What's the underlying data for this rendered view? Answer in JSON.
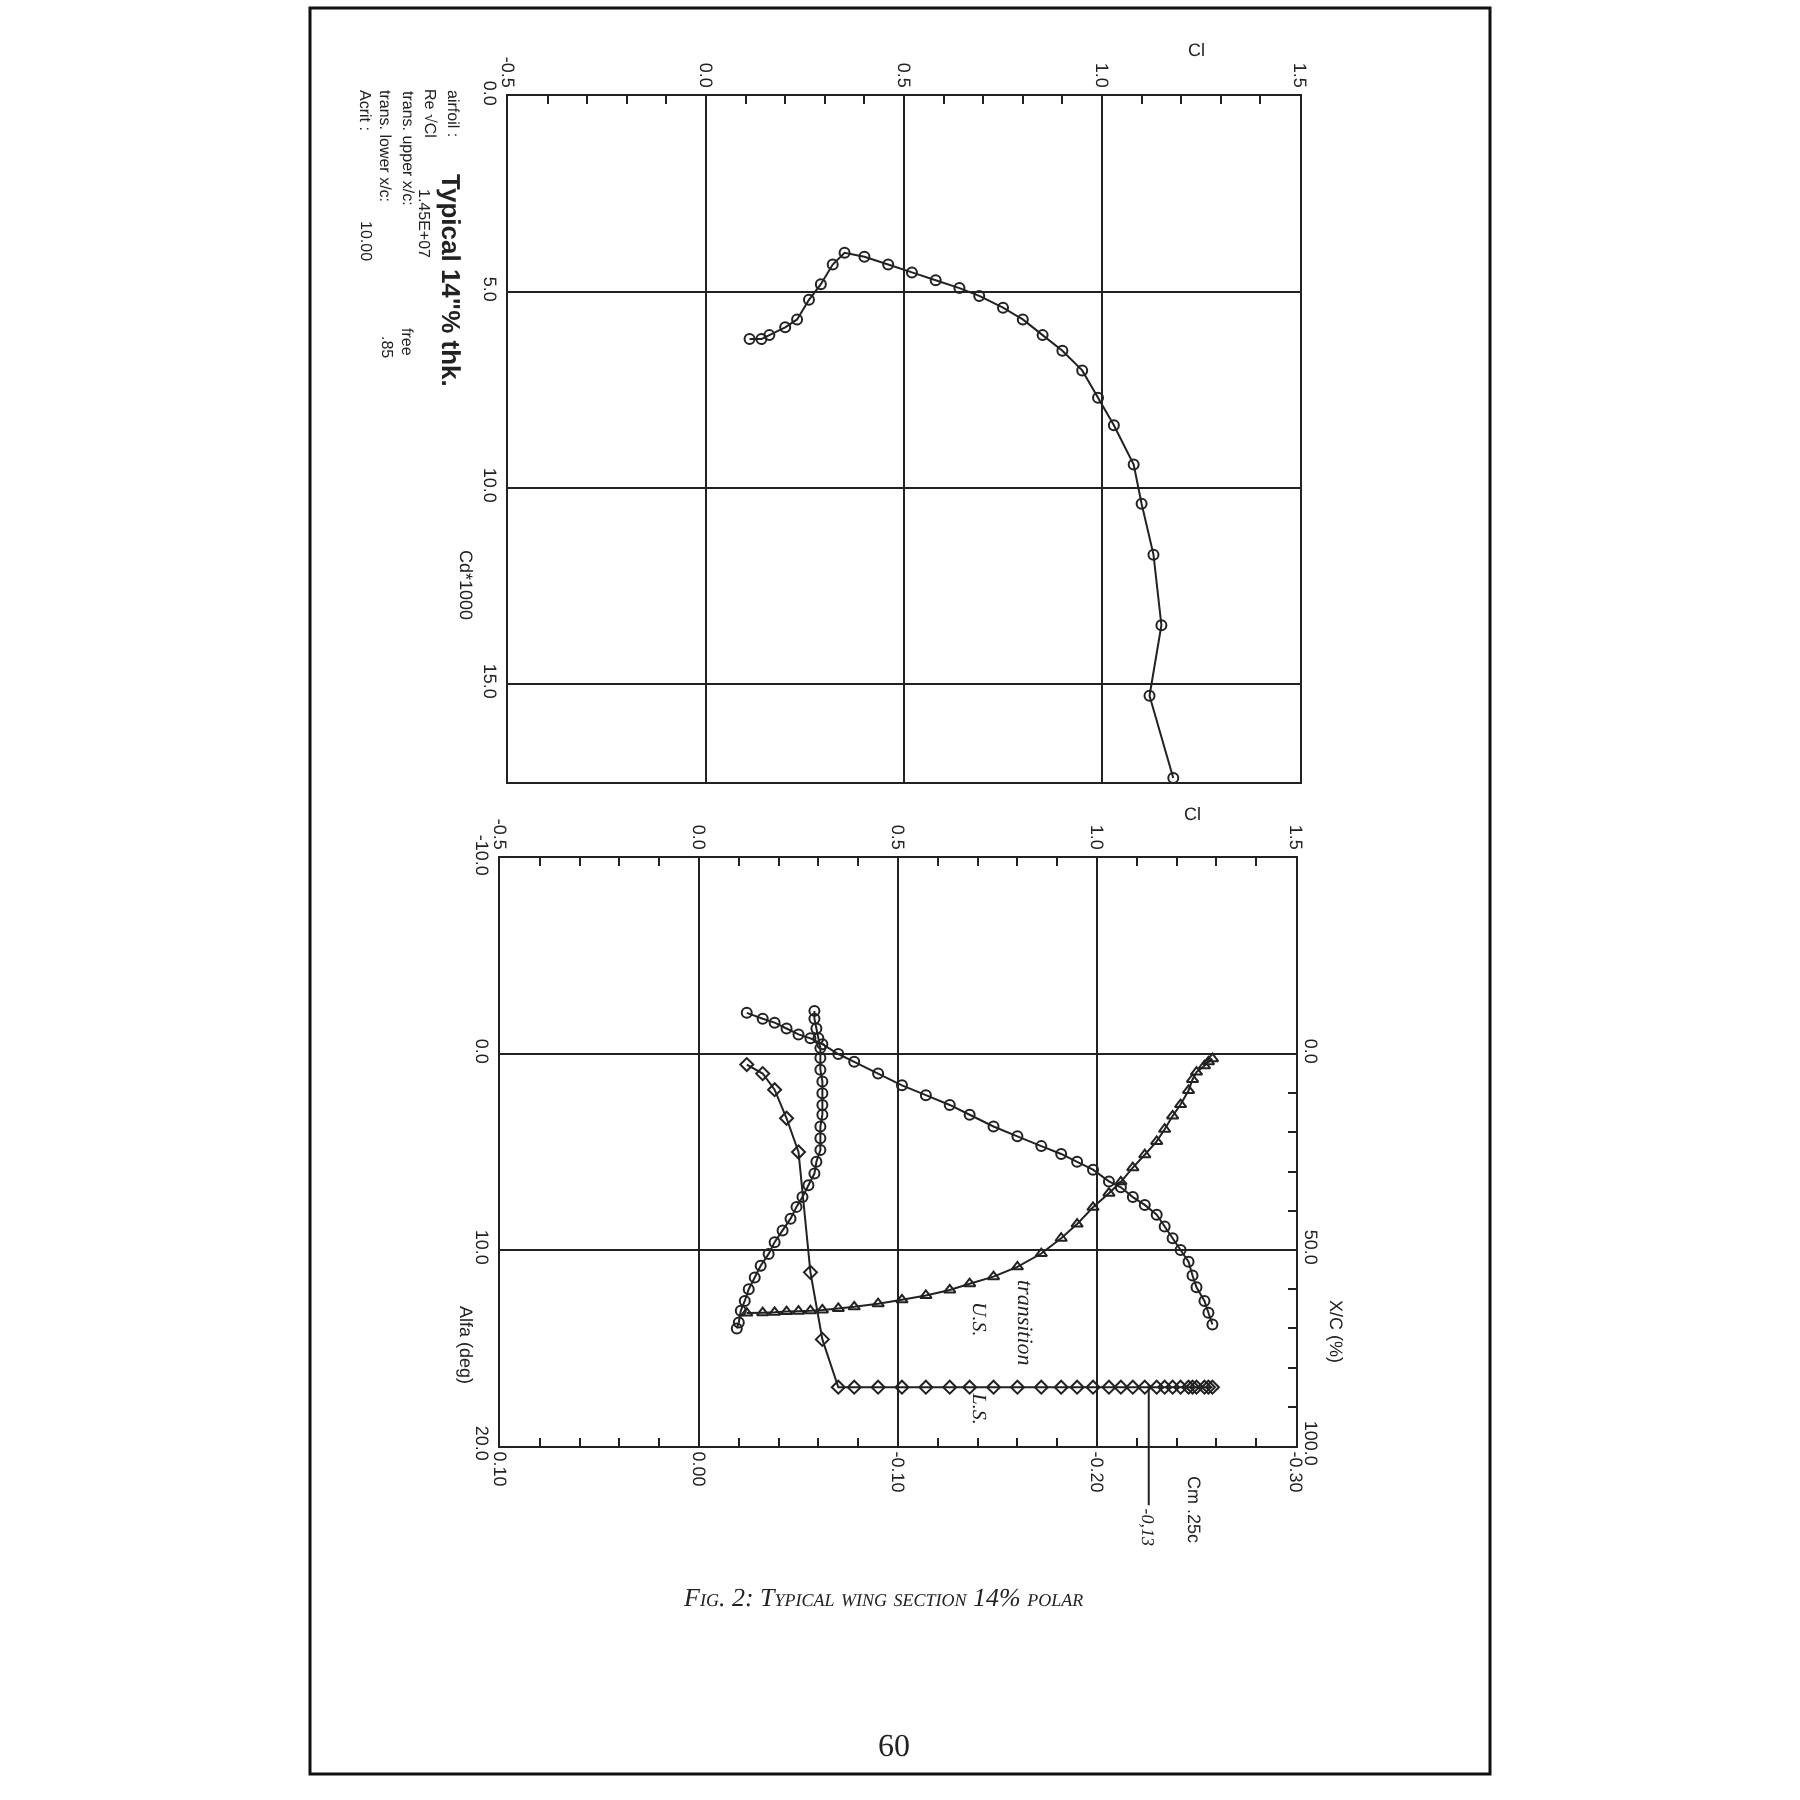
{
  "chart_data": [
    {
      "type": "line",
      "xlabel": "Cl",
      "ylabel": "Cd*1000",
      "xlim": [
        -0.5,
        1.5
      ],
      "xticks": [
        -0.5,
        {
          "value": -0.4,
          "label": null
        },
        {
          "value": -0.3,
          "label": null
        },
        {
          "value": -0.2,
          "label": null
        },
        {
          "value": -0.1,
          "label": null
        },
        {
          "value": 0,
          "label": "0.0"
        },
        {
          "value": 0.1,
          "label": null
        },
        {
          "value": 0.2,
          "label": null
        },
        {
          "value": 0.3,
          "label": null
        },
        {
          "value": 0.4,
          "label": null
        },
        0.5,
        {
          "value": 0.6,
          "label": null
        },
        {
          "value": 0.7,
          "label": null
        },
        {
          "value": 0.8,
          "label": null
        },
        {
          "value": 0.9,
          "label": null
        },
        {
          "value": 1,
          "label": "1.0"
        },
        {
          "value": 1.1,
          "label": null
        },
        {
          "value": 1.2,
          "label": null
        },
        {
          "value": 1.3,
          "label": null
        },
        {
          "value": 1.4,
          "label": null
        },
        1.5
      ],
      "ylim": [
        17.5,
        0
      ],
      "yticks": [
        {
          "value": 0,
          "label": "0.0"
        },
        {
          "value": 5,
          "label": "5.0"
        },
        {
          "value": 10,
          "label": "10.0"
        },
        {
          "value": 15,
          "label": "15.0"
        }
      ],
      "grid": true,
      "legend": false,
      "marker": "circle",
      "line_style": "solid",
      "annotations": [
        "airfoil :",
        "Typical 14\"% thk.",
        "Re √Cl",
        "1.45E+07",
        "trans. upper x/c:",
        "free",
        "trans. lower x/c:",
        ".85",
        "Acrit :",
        "10.00"
      ],
      "series": [
        {
          "color": "#222222",
          "x": [
            0.11,
            0.14,
            0.16,
            0.2,
            0.23,
            0.26,
            0.29,
            0.32,
            0.35,
            0.4,
            0.46,
            0.52,
            0.58,
            0.64,
            0.69,
            0.75,
            0.8,
            0.85,
            0.9,
            0.95,
            0.99,
            1.03,
            1.08,
            1.1,
            1.13,
            1.15,
            1.12,
            1.18
          ],
          "values": [
            6.2,
            6.2,
            6.1,
            5.9,
            5.7,
            5.2,
            4.8,
            4.3,
            4.0,
            4.1,
            4.3,
            4.5,
            4.7,
            4.9,
            5.1,
            5.4,
            5.7,
            6.1,
            6.5,
            7.0,
            7.7,
            8.4,
            9.4,
            10.4,
            11.7,
            13.5,
            15.3,
            17.4
          ]
        }
      ]
    },
    {
      "type": "line",
      "xlabel": "Cl",
      "x2label": "Cm .25c",
      "ylabel": "Alfa (deg)",
      "y2label": "X/C (%)",
      "xlim": [
        -0.5,
        1.5
      ],
      "xticks": [
        -0.5,
        {
          "value": -0.4,
          "label": null
        },
        {
          "value": -0.3,
          "label": null
        },
        {
          "value": -0.2,
          "label": null
        },
        {
          "value": -0.1,
          "label": null
        },
        {
          "value": 0,
          "label": "0.0"
        },
        {
          "value": 0.1,
          "label": null
        },
        {
          "value": 0.2,
          "label": null
        },
        {
          "value": 0.3,
          "label": null
        },
        {
          "value": 0.4,
          "label": null
        },
        0.5,
        {
          "value": 0.6,
          "label": null
        },
        {
          "value": 0.7,
          "label": null
        },
        {
          "value": 0.8,
          "label": null
        },
        {
          "value": 0.9,
          "label": null
        },
        {
          "value": 1,
          "label": "1.0"
        },
        {
          "value": 1.1,
          "label": null
        },
        {
          "value": 1.2,
          "label": null
        },
        {
          "value": 1.3,
          "label": null
        },
        {
          "value": 1.4,
          "label": null
        },
        1.5
      ],
      "x2lim": [
        0.1,
        -0.3
      ],
      "x2ticks": [
        {
          "value": 0.1,
          "label": "0.10"
        },
        {
          "value": 0.08,
          "label": null
        },
        {
          "value": 0.06,
          "label": null
        },
        {
          "value": 0.04,
          "label": null
        },
        {
          "value": 0.02,
          "label": null
        },
        {
          "value": 0,
          "label": "0.00"
        },
        {
          "value": -0.02,
          "label": null
        },
        {
          "value": -0.04,
          "label": null
        },
        {
          "value": -0.06,
          "label": null
        },
        {
          "value": -0.08,
          "label": null
        },
        {
          "value": -0.1,
          "label": "-0.10"
        },
        {
          "value": -0.12,
          "label": null
        },
        {
          "value": -0.14,
          "label": null
        },
        {
          "value": -0.16,
          "label": null
        },
        {
          "value": -0.18,
          "label": null
        },
        {
          "value": -0.2,
          "label": "-0.20"
        },
        {
          "value": -0.22,
          "label": null
        },
        {
          "value": -0.24,
          "label": null
        },
        {
          "value": -0.26,
          "label": null
        },
        {
          "value": -0.28,
          "label": null
        },
        {
          "value": -0.3,
          "label": "-0.30"
        }
      ],
      "ylim": [
        20,
        -10
      ],
      "yticks": [
        {
          "value": -10,
          "label": "-10.0"
        },
        {
          "value": 0,
          "label": "0.0"
        },
        {
          "value": 10,
          "label": "10.0"
        },
        {
          "value": 20,
          "label": "20.0"
        }
      ],
      "y2lim": [
        100,
        -50
      ],
      "y2ticks": [
        {
          "value": 0,
          "label": "0.0"
        },
        {
          "value": 10,
          "label": null
        },
        {
          "value": 20,
          "label": null
        },
        {
          "value": 30,
          "label": null
        },
        {
          "value": 40,
          "label": null
        },
        {
          "value": 50,
          "label": "50.0"
        },
        {
          "value": 60,
          "label": null
        },
        {
          "value": 70,
          "label": null
        },
        {
          "value": 80,
          "label": null
        },
        {
          "value": 90,
          "label": null
        },
        {
          "value": 100,
          "label": "100.0"
        }
      ],
      "grid": true,
      "legend": false,
      "line_style": "solid",
      "annotations": [
        "transition",
        {
          "text": "-0,13",
          "x": 1.13,
          "y": 16.9
        },
        "Fig. 2: Typical wing section 14% polar",
        "60"
      ],
      "series": [
        {
          "color": "#222222",
          "marker": "circle",
          "x": [
            0.12,
            0.16,
            0.19,
            0.22,
            0.25,
            0.28,
            0.31,
            0.35,
            0.39,
            0.45,
            0.51,
            0.57,
            0.63,
            0.68,
            0.74,
            0.8,
            0.86,
            0.91,
            0.95,
            0.99,
            1.03,
            1.06,
            1.09,
            1.12,
            1.15,
            1.17,
            1.19,
            1.21,
            1.23,
            1.24,
            1.25,
            1.27,
            1.28,
            1.29
          ],
          "values": [
            -2.1,
            -1.8,
            -1.6,
            -1.3,
            -1.0,
            -0.8,
            -0.5,
            0.0,
            0.4,
            1.0,
            1.6,
            2.1,
            2.6,
            3.1,
            3.7,
            4.2,
            4.7,
            5.1,
            5.5,
            5.9,
            6.5,
            6.8,
            7.3,
            7.7,
            8.2,
            8.8,
            9.4,
            10.0,
            10.6,
            11.3,
            11.9,
            12.6,
            13.2,
            13.8
          ]
        },
        {
          "color": "#222222",
          "axis": "x2",
          "marker": "circle",
          "x": [
            -0.058,
            -0.058,
            -0.059,
            -0.06,
            -0.061,
            -0.061,
            -0.061,
            -0.062,
            -0.062,
            -0.062,
            -0.062,
            -0.061,
            -0.061,
            -0.061,
            -0.059,
            -0.058,
            -0.055,
            -0.052,
            -0.049,
            -0.046,
            -0.042,
            -0.038,
            -0.035,
            -0.031,
            -0.028,
            -0.025,
            -0.023,
            -0.021,
            -0.02,
            -0.019
          ],
          "values": [
            -2.2,
            -1.8,
            -1.3,
            -0.8,
            -0.3,
            0.2,
            0.8,
            1.4,
            2.0,
            2.6,
            3.1,
            3.7,
            4.3,
            4.9,
            5.5,
            6.1,
            6.7,
            7.3,
            7.8,
            8.4,
            9.0,
            9.6,
            10.2,
            10.8,
            11.4,
            12.0,
            12.6,
            13.1,
            13.7,
            14.0
          ]
        },
        {
          "name": "U.S.",
          "color": "#222222",
          "axis": "y2",
          "marker": "triangle",
          "x": [
            0.12,
            0.16,
            0.19,
            0.22,
            0.25,
            0.28,
            0.31,
            0.35,
            0.39,
            0.45,
            0.51,
            0.57,
            0.63,
            0.68,
            0.74,
            0.8,
            0.86,
            0.91,
            0.95,
            0.99,
            1.03,
            1.06,
            1.09,
            1.12,
            1.15,
            1.17,
            1.19,
            1.21,
            1.23,
            1.24,
            1.25,
            1.27,
            1.28,
            1.29
          ],
          "values": [
            66.1,
            66.0,
            65.9,
            65.7,
            65.6,
            65.5,
            65.3,
            64.9,
            64.5,
            63.7,
            62.7,
            61.6,
            60.2,
            58.6,
            56.8,
            54.3,
            50.9,
            47.0,
            43.4,
            39.1,
            35.5,
            32.6,
            29.0,
            25.7,
            22.3,
            19.2,
            15.8,
            12.9,
            9.3,
            6.5,
            4.6,
            3.0,
            2.0,
            1.2
          ]
        },
        {
          "name": "L.S.",
          "color": "#222222",
          "axis": "y2",
          "marker": "diamond",
          "x": [
            0.12,
            0.16,
            0.19,
            0.22,
            0.25,
            0.28,
            0.31,
            0.35,
            0.39,
            0.45,
            0.51,
            0.57,
            0.63,
            0.68,
            0.74,
            0.8,
            0.86,
            0.91,
            0.95,
            0.99,
            1.03,
            1.06,
            1.09,
            1.12,
            1.15,
            1.17,
            1.19,
            1.21,
            1.23,
            1.24,
            1.25,
            1.27,
            1.28,
            1.29
          ],
          "values": [
            2.7,
            5.0,
            9.1,
            16.4,
            25.0,
            55.7,
            72.8,
            85.0,
            85.0,
            85.0,
            85.0,
            85.0,
            85.0,
            85.0,
            85.0,
            85.0,
            85.0,
            85.0,
            85.0,
            85.0,
            85.0,
            85.0,
            85.0,
            85.0,
            85.0,
            85.0,
            85.0,
            85.0,
            85.0,
            85.0,
            85.0,
            85.0,
            85.0,
            85.0
          ]
        }
      ]
    }
  ]
}
